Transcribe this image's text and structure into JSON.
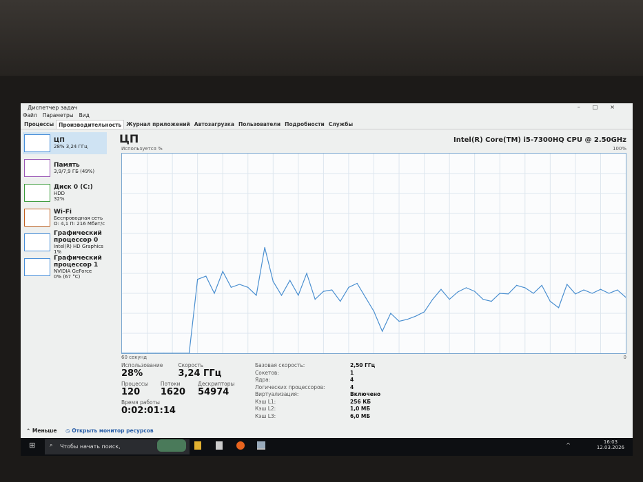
{
  "window": {
    "title": "Диспетчер задач",
    "controls": [
      "–",
      "□",
      "×"
    ]
  },
  "menu": [
    "Файл",
    "Параметры",
    "Вид"
  ],
  "tabs": [
    "Процессы",
    "Производительность",
    "Журнал приложений",
    "Автозагрузка",
    "Пользователи",
    "Подробности",
    "Службы"
  ],
  "sidebar": [
    {
      "name": "ЦП",
      "l1": "28% 3,24 ГГц",
      "l2": "",
      "color": "#4a90d9"
    },
    {
      "name": "Память",
      "l1": "3,9/7,9 ГБ (49%)",
      "l2": "",
      "color": "#9b59b6"
    },
    {
      "name": "Диск 0 (C:)",
      "l1": "HDD",
      "l2": "32%",
      "color": "#3a9a3a"
    },
    {
      "name": "Wi-Fi",
      "l1": "Беспроводная сеть",
      "l2": "О: 4,1 П: 216 Мбит/с",
      "color": "#c06020"
    },
    {
      "name": "Графический процессор 0",
      "l1": "Intel(R) HD Graphics",
      "l2": "1%",
      "color": "#4a90d9"
    },
    {
      "name": "Графический процессор 1",
      "l1": "NVIDIA GeForce",
      "l2": "0% (67 °C)",
      "color": "#4a90d9"
    }
  ],
  "main": {
    "title": "ЦП",
    "cpu_name": "Intel(R) Core(TM) i5-7300HQ CPU @ 2.50GHz",
    "usage_label": "Используется %",
    "max_label": "100%",
    "time_label": "60 секунд",
    "zero_label": "0",
    "usage": {
      "label": "Использование",
      "value": "28%"
    },
    "speed": {
      "label": "Скорость",
      "value": "3,24 ГГц"
    },
    "processes": {
      "label": "Процессы",
      "value": "120"
    },
    "threads": {
      "label": "Потоки",
      "value": "1620"
    },
    "handles": {
      "label": "Дескрипторы",
      "value": "54974"
    },
    "uptime": {
      "label": "Время работы",
      "value": "0:02:01:14"
    },
    "specs": [
      [
        "Базовая скорость:",
        "2,50 ГГц"
      ],
      [
        "Сокетов:",
        "1"
      ],
      [
        "Ядра:",
        "4"
      ],
      [
        "Логических процессоров:",
        "4"
      ],
      [
        "Виртуализация:",
        "Включено"
      ],
      [
        "Кэш L1:",
        "256 КБ"
      ],
      [
        "Кэш L2:",
        "1,0 МБ"
      ],
      [
        "Кэш L3:",
        "6,0 МБ"
      ]
    ]
  },
  "footer": {
    "less": "Меньше",
    "monitor": "Открыть монитор ресурсов"
  },
  "taskbar": {
    "search": "Чтобы начать поиск,",
    "time": "16:03",
    "date": "12.03.2026"
  },
  "chart_data": {
    "type": "line",
    "title": "",
    "xlabel": "60 секунд",
    "ylabel": "Используется %",
    "ylim": [
      0,
      100
    ],
    "xlim": [
      60,
      0
    ],
    "grid": true,
    "line_color": "#4a8fd0",
    "x_seconds_ago": [
      60,
      59,
      58,
      57,
      56,
      55,
      54,
      53,
      52,
      51,
      50,
      49,
      48,
      47,
      46,
      45,
      44,
      43,
      42,
      41,
      40,
      39,
      38,
      37,
      36,
      35,
      34,
      33,
      32,
      31,
      30,
      29,
      28,
      27,
      26,
      25,
      24,
      23,
      22,
      21,
      20,
      19,
      18,
      17,
      16,
      15,
      14,
      13,
      12,
      11,
      10,
      9,
      8,
      7,
      6,
      5,
      4,
      3,
      2,
      1,
      0
    ],
    "values": [
      0,
      0,
      0,
      0,
      0,
      0,
      0,
      0,
      0,
      37,
      38.6,
      30,
      41,
      33,
      34.5,
      33,
      29,
      53,
      36,
      29,
      36.5,
      29,
      40,
      27,
      31,
      31.7,
      26,
      33,
      35,
      28,
      21,
      11,
      20,
      16,
      17,
      18.6,
      20.7,
      27,
      32,
      27,
      30.7,
      32.8,
      31,
      27,
      26,
      30,
      29.7,
      34,
      32.8,
      30,
      34,
      26,
      22.8,
      34.5,
      29.7,
      31.7,
      30,
      32,
      30,
      31.7,
      28
    ]
  }
}
